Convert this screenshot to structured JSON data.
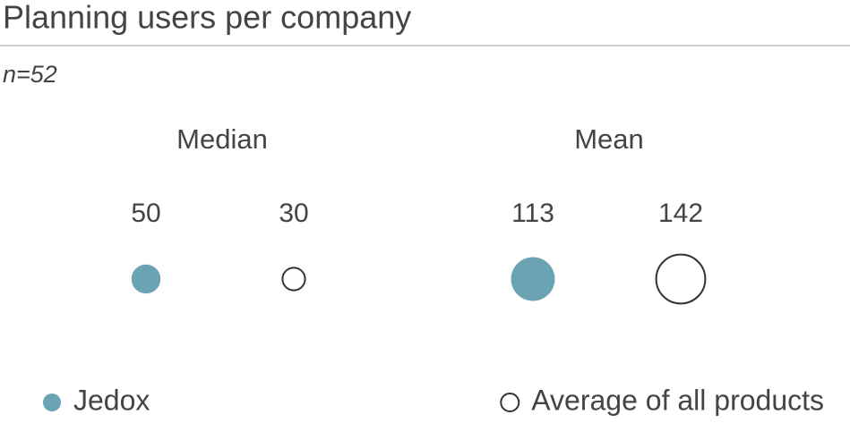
{
  "chart_data": {
    "type": "bubble",
    "title": "Planning users per company",
    "subtitle": "n=52",
    "categories": [
      "Median",
      "Mean"
    ],
    "series": [
      {
        "name": "Jedox",
        "color": "#6aa3b4",
        "values": [
          50,
          113
        ]
      },
      {
        "name": "Average of all products",
        "color": "#ffffff",
        "values": [
          30,
          142
        ]
      }
    ]
  }
}
